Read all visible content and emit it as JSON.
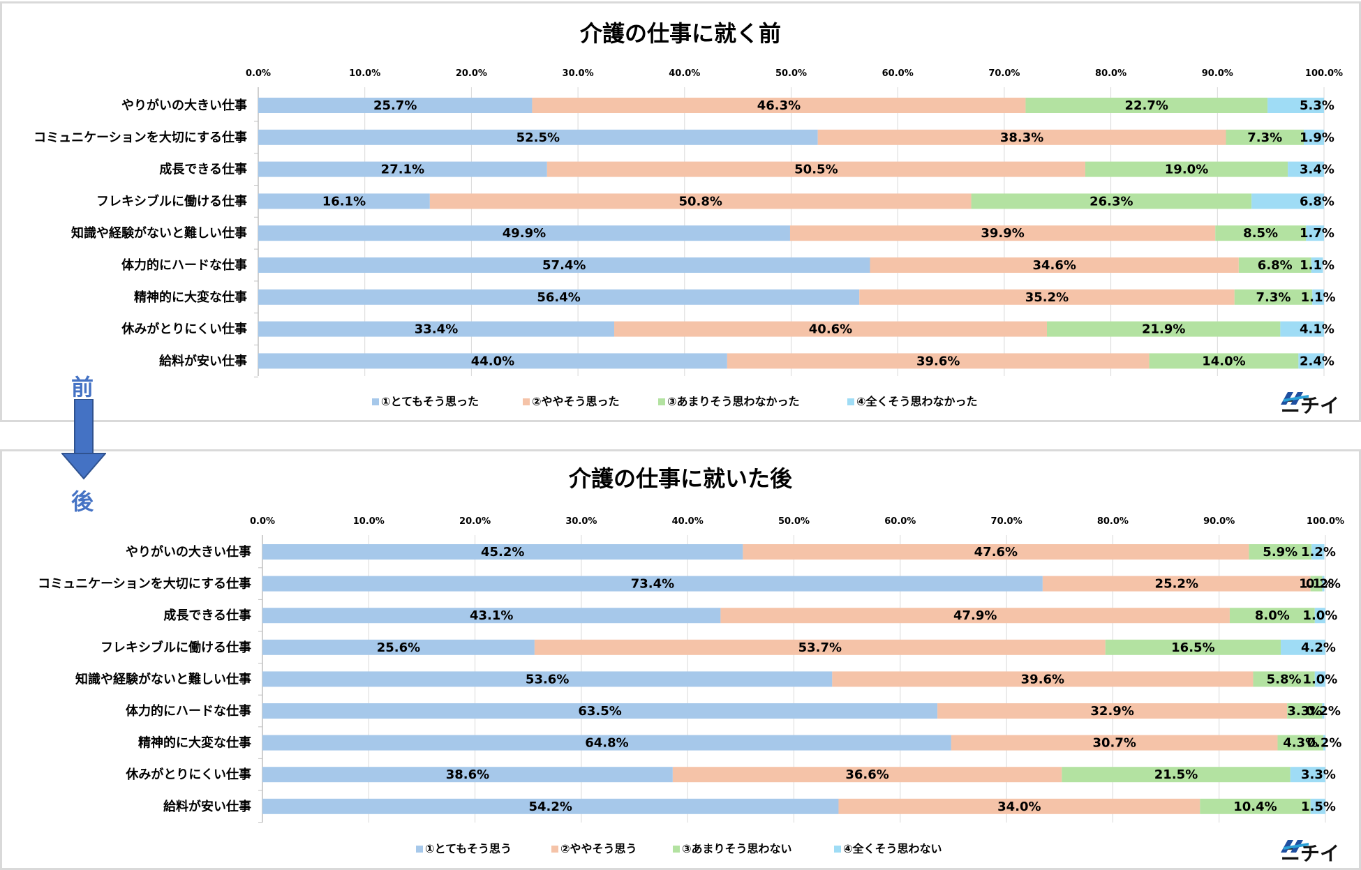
{
  "arrow": {
    "before_label": "前",
    "after_label": "後"
  },
  "logo_text": "ニチイ",
  "colors": {
    "c1": "#a6c8ea",
    "c2": "#f5c3a8",
    "c3": "#b3e2a1",
    "c4": "#9fdcf5",
    "axis": "#bfbfbf",
    "grid": "#d9d9d9",
    "accent": "#4472c4"
  },
  "chart_data": [
    {
      "type": "bar",
      "stacked": true,
      "orientation": "horizontal",
      "title": "介護の仕事に就く前",
      "xlim": [
        0,
        100
      ],
      "ticks": [
        "0.0%",
        "10.0%",
        "20.0%",
        "30.0%",
        "40.0%",
        "50.0%",
        "60.0%",
        "70.0%",
        "80.0%",
        "90.0%",
        "100.0%"
      ],
      "categories": [
        "やりがいの大きい仕事",
        "コミュニケーションを大切にする仕事",
        "成長できる仕事",
        "フレキシブルに働ける仕事",
        "知識や経験がないと難しい仕事",
        "体力的にハードな仕事",
        "精神的に大変な仕事",
        "休みがとりにくい仕事",
        "給料が安い仕事"
      ],
      "series": [
        {
          "name": "①とてもそう思った",
          "values": [
            25.7,
            52.5,
            27.1,
            16.1,
            49.9,
            57.4,
            56.4,
            33.4,
            44.0
          ]
        },
        {
          "name": "②ややそう思った",
          "values": [
            46.3,
            38.3,
            50.5,
            50.8,
            39.9,
            34.6,
            35.2,
            40.6,
            39.6
          ]
        },
        {
          "name": "③あまりそう思わなかった",
          "values": [
            22.7,
            7.3,
            19.0,
            26.3,
            8.5,
            6.8,
            7.3,
            21.9,
            14.0
          ]
        },
        {
          "name": "④全くそう思わなかった",
          "values": [
            5.3,
            1.9,
            3.4,
            6.8,
            1.7,
            1.1,
            1.1,
            4.1,
            2.4
          ]
        }
      ],
      "labels": [
        [
          "25.7%",
          "46.3%",
          "22.7%",
          "5.3%"
        ],
        [
          "52.5%",
          "38.3%",
          "7.3%",
          "1.9%"
        ],
        [
          "27.1%",
          "50.5%",
          "19.0%",
          "3.4%"
        ],
        [
          "16.1%",
          "50.8%",
          "26.3%",
          "6.8%"
        ],
        [
          "49.9%",
          "39.9%",
          "8.5%",
          "1.7%"
        ],
        [
          "57.4%",
          "34.6%",
          "6.8%",
          "1.1%"
        ],
        [
          "56.4%",
          "35.2%",
          "7.3%",
          "1.1%"
        ],
        [
          "33.4%",
          "40.6%",
          "21.9%",
          "4.1%"
        ],
        [
          "44.0%",
          "39.6%",
          "14.0%",
          "2.4%"
        ]
      ]
    },
    {
      "type": "bar",
      "stacked": true,
      "orientation": "horizontal",
      "title": "介護の仕事に就いた後",
      "xlim": [
        0,
        100
      ],
      "ticks": [
        "0.0%",
        "10.0%",
        "20.0%",
        "30.0%",
        "40.0%",
        "50.0%",
        "60.0%",
        "70.0%",
        "80.0%",
        "90.0%",
        "100.0%"
      ],
      "categories": [
        "やりがいの大きい仕事",
        "コミュニケーションを大切にする仕事",
        "成長できる仕事",
        "フレキシブルに働ける仕事",
        "知識や経験がないと難しい仕事",
        "体力的にハードな仕事",
        "精神的に大変な仕事",
        "休みがとりにくい仕事",
        "給料が安い仕事"
      ],
      "series": [
        {
          "name": "①とてもそう思う",
          "values": [
            45.2,
            73.4,
            43.1,
            25.6,
            53.6,
            63.5,
            64.8,
            38.6,
            54.2
          ]
        },
        {
          "name": "②ややそう思う",
          "values": [
            47.6,
            25.2,
            47.9,
            53.7,
            39.6,
            32.9,
            30.7,
            36.6,
            34.0
          ]
        },
        {
          "name": "③あまりそう思わない",
          "values": [
            5.9,
            1.1,
            8.0,
            16.5,
            5.8,
            3.3,
            4.3,
            21.5,
            10.4
          ]
        },
        {
          "name": "④全くそう思わない",
          "values": [
            1.2,
            0.2,
            1.0,
            4.2,
            1.0,
            0.2,
            0.2,
            3.3,
            1.5
          ]
        }
      ],
      "labels": [
        [
          "45.2%",
          "47.6%",
          "5.9%",
          "1.2%"
        ],
        [
          "73.4%",
          "25.2%",
          "1.1%",
          "0.2%"
        ],
        [
          "43.1%",
          "47.9%",
          "8.0%",
          "1.0%"
        ],
        [
          "25.6%",
          "53.7%",
          "16.5%",
          "4.2%"
        ],
        [
          "53.6%",
          "39.6%",
          "5.8%",
          "1.0%"
        ],
        [
          "63.5%",
          "32.9%",
          "3.3%",
          "0.2%"
        ],
        [
          "64.8%",
          "30.7%",
          "4.3%",
          "0.2%"
        ],
        [
          "38.6%",
          "36.6%",
          "21.5%",
          "3.3%"
        ],
        [
          "54.2%",
          "34.0%",
          "10.4%",
          "1.5%"
        ]
      ]
    }
  ]
}
